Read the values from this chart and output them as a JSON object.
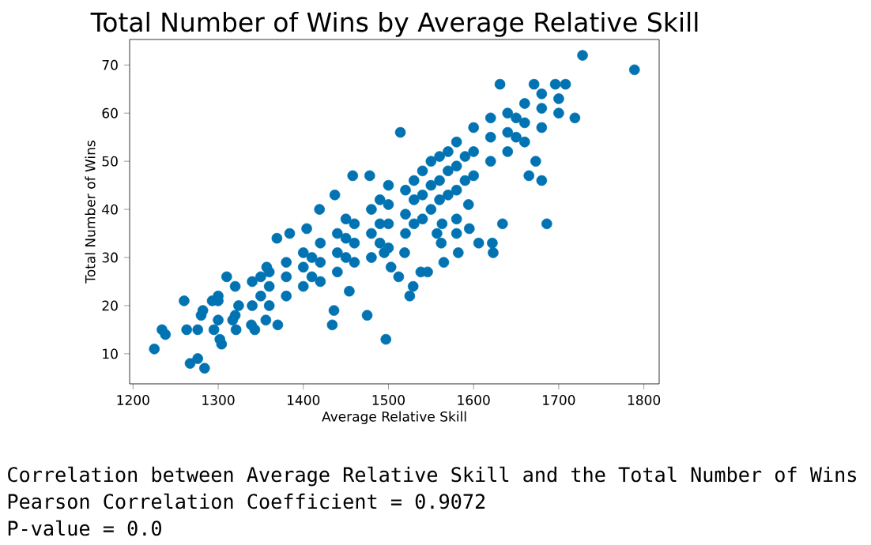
{
  "chart_data": {
    "type": "scatter",
    "title": "Total Number of Wins by Average Relative Skill",
    "xlabel": "Average Relative Skill",
    "ylabel": "Total Number of Wins",
    "annotations": [
      "Correlation between Average Relative Skill and the Total Number of Wins",
      "Pearson Correlation Coefficient = 0.9072",
      "P-value = 0.0"
    ],
    "x": [
      1225,
      1234,
      1238,
      1260,
      1263,
      1267,
      1276,
      1284,
      1276,
      1280,
      1282,
      1293,
      1300,
      1295,
      1304,
      1302,
      1310,
      1317,
      1324,
      1321,
      1339,
      1343,
      1357,
      1356,
      1370,
      1369,
      1384,
      1404,
      1419,
      1437,
      1458,
      1478,
      1454,
      1475,
      1434,
      1436,
      1728,
      1789,
      1631,
      1671,
      1708,
      1696,
      1719,
      1665,
      1680,
      1686,
      1634,
      1673,
      1514,
      1497,
      1525,
      1512,
      1529,
      1538,
      1546,
      1565,
      1582,
      1606,
      1622,
      1623,
      1595,
      1580,
      1562,
      1557,
      1563,
      1580,
      1594,
      1519,
      1503,
      1495,
      1300,
      1300,
      1320,
      1320,
      1340,
      1340,
      1350,
      1350,
      1360,
      1360,
      1360,
      1380,
      1380,
      1380,
      1400,
      1400,
      1400,
      1410,
      1410,
      1420,
      1420,
      1420,
      1440,
      1440,
      1440,
      1450,
      1450,
      1450,
      1460,
      1460,
      1460,
      1480,
      1480,
      1480,
      1490,
      1490,
      1490,
      1500,
      1500,
      1500,
      1500,
      1520,
      1520,
      1520,
      1530,
      1530,
      1530,
      1540,
      1540,
      1540,
      1550,
      1550,
      1550,
      1560,
      1560,
      1560,
      1570,
      1570,
      1570,
      1580,
      1580,
      1580,
      1590,
      1590,
      1600,
      1600,
      1600,
      1620,
      1620,
      1620,
      1640,
      1640,
      1640,
      1650,
      1650,
      1660,
      1660,
      1660,
      1680,
      1680,
      1680,
      1700,
      1700
    ],
    "values": [
      11,
      15,
      14,
      21,
      15,
      8,
      9,
      7,
      15,
      18,
      19,
      21,
      21,
      15,
      12,
      13,
      26,
      17,
      20,
      15,
      16,
      15,
      28,
      17,
      16,
      34,
      35,
      36,
      40,
      43,
      47,
      47,
      23,
      18,
      16,
      19,
      72,
      69,
      66,
      66,
      66,
      66,
      59,
      47,
      46,
      37,
      37,
      50,
      56,
      13,
      22,
      26,
      24,
      27,
      27,
      29,
      31,
      33,
      33,
      31,
      36,
      35,
      33,
      35,
      37,
      38,
      41,
      31,
      28,
      31,
      17,
      22,
      18,
      24,
      20,
      25,
      22,
      26,
      20,
      24,
      27,
      22,
      26,
      29,
      24,
      28,
      31,
      26,
      30,
      25,
      29,
      33,
      27,
      31,
      35,
      30,
      34,
      38,
      29,
      33,
      37,
      30,
      35,
      40,
      33,
      37,
      42,
      32,
      37,
      41,
      45,
      35,
      39,
      44,
      37,
      42,
      46,
      38,
      43,
      48,
      40,
      45,
      50,
      42,
      46,
      51,
      43,
      48,
      52,
      44,
      49,
      54,
      46,
      51,
      47,
      52,
      57,
      50,
      55,
      59,
      52,
      56,
      60,
      55,
      59,
      54,
      58,
      62,
      57,
      61,
      64,
      60,
      63
    ],
    "color": "#0173b2",
    "marker": "circle",
    "xlim": [
      1196,
      1818
    ],
    "ylim": [
      3.75,
      75.3
    ],
    "xticks": [
      1200,
      1300,
      1400,
      1500,
      1600,
      1700,
      1800
    ],
    "yticks": [
      10,
      20,
      30,
      40,
      50,
      60,
      70
    ]
  }
}
